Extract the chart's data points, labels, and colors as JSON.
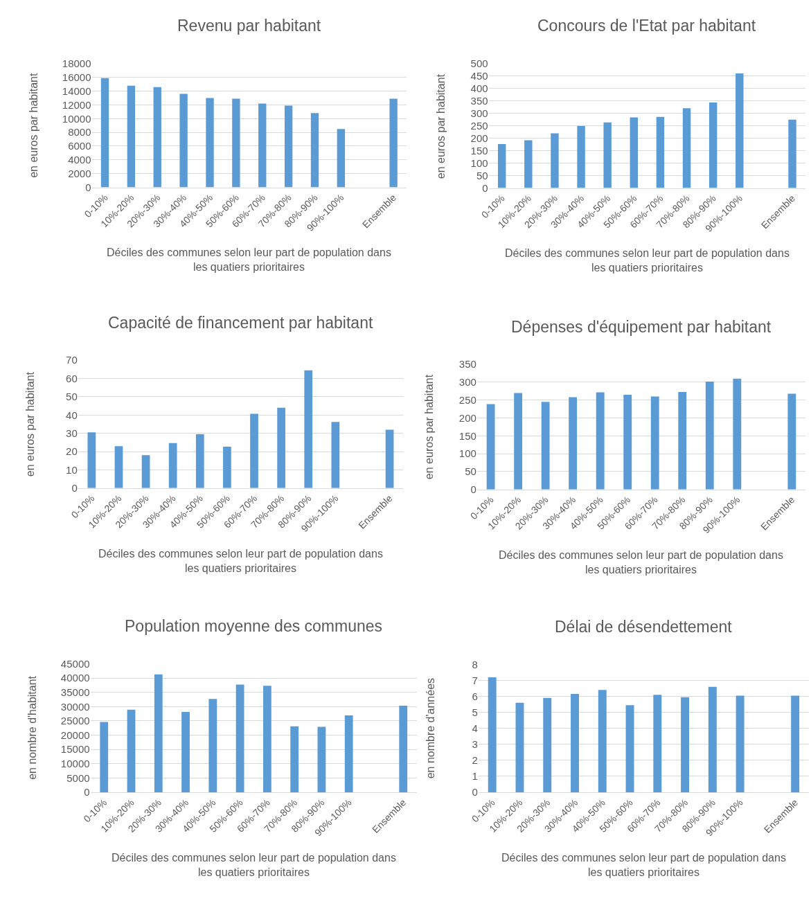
{
  "chart_data": [
    {
      "type": "bar",
      "title": "Revenu par habitant",
      "xlabel": "Déciles des communes selon leur part de population dans les quatiers prioritaires",
      "ylabel": "en euros par habitant",
      "categories": [
        "0-10%",
        "10%-20%",
        "20%-30%",
        "30%-40%",
        "40%-50%",
        "50%-60%",
        "60%-70%",
        "70%-80%",
        "80%-90%",
        "90%-100%",
        null,
        "Ensemble"
      ],
      "color": "#5b9bd5",
      "values": [
        15900,
        14800,
        14600,
        13600,
        13000,
        12900,
        12200,
        11900,
        10800,
        8500,
        null,
        12900
      ],
      "ylim": [
        0,
        18000
      ],
      "yticks": [
        0,
        2000,
        4000,
        6000,
        8000,
        10000,
        12000,
        14000,
        16000,
        18000
      ],
      "grid": "y"
    },
    {
      "type": "bar",
      "title": "Concours de l'Etat par habitant",
      "xlabel": "Déciles des communes selon leur part de population dans les quatiers prioritaires",
      "ylabel": "en euros par habitant",
      "categories": [
        "0-10%",
        "10%-20%",
        "20%-30%",
        "30%-40%",
        "40%-50%",
        "50%-60%",
        "60%-70%",
        "70%-80%",
        "80%-90%",
        "90%-100%",
        null,
        "Ensemble"
      ],
      "color": "#5b9bd5",
      "values": [
        177,
        192,
        220,
        249,
        264,
        284,
        286,
        321,
        344,
        461,
        null,
        275
      ],
      "ylim": [
        0,
        500
      ],
      "yticks": [
        0,
        50,
        100,
        150,
        200,
        250,
        300,
        350,
        400,
        450,
        500
      ],
      "grid": "y"
    },
    {
      "type": "bar",
      "title": "Capacité de financement par habitant",
      "xlabel": "Déciles des communes selon leur part de population dans les quatiers prioritaires",
      "ylabel": "en euros par habitant",
      "categories": [
        "0-10%",
        "10%-20%",
        "20%-30%",
        "30%-40%",
        "40%-50%",
        "50%-60%",
        "60%-70%",
        "70%-80%",
        "80%-90%",
        "90%-100%",
        null,
        "Ensemble"
      ],
      "color": "#5b9bd5",
      "values": [
        30.5,
        23,
        18,
        24.7,
        29.5,
        22.7,
        40.7,
        44,
        64.5,
        36.2,
        null,
        32
      ],
      "ylim": [
        0,
        70
      ],
      "yticks": [
        0,
        10,
        20,
        30,
        40,
        50,
        60,
        70
      ],
      "grid": "y"
    },
    {
      "type": "bar",
      "title": "Dépenses d'équipement par habitant",
      "xlabel": "Déciles des communes selon leur part de population dans les quatiers prioritaires",
      "ylabel": "en euros par habitant",
      "categories": [
        "0-10%",
        "10%-20%",
        "20%-30%",
        "30%-40%",
        "40%-50%",
        "50%-60%",
        "60%-70%",
        "70%-80%",
        "80%-90%",
        "90%-100%",
        null,
        "Ensemble"
      ],
      "color": "#5b9bd5",
      "values": [
        239,
        270,
        245,
        258,
        272,
        265,
        260,
        273,
        302,
        310,
        null,
        268
      ],
      "ylim": [
        0,
        350
      ],
      "yticks": [
        0,
        50,
        100,
        150,
        200,
        250,
        300,
        350
      ],
      "grid": "y"
    },
    {
      "type": "bar",
      "title": "Population moyenne des communes",
      "xlabel": "Déciles des communes selon leur part de population dans les quatiers prioritaires",
      "ylabel": "en nombre d'habitant",
      "categories": [
        "0-10%",
        "10%-20%",
        "20%-30%",
        "30%-40%",
        "40%-50%",
        "50%-60%",
        "60%-70%",
        "70%-80%",
        "80%-90%",
        "90%-100%",
        null,
        "Ensemble"
      ],
      "color": "#5b9bd5",
      "values": [
        24600,
        28900,
        41300,
        28100,
        32700,
        37700,
        37300,
        23100,
        22900,
        26900,
        null,
        30300
      ],
      "ylim": [
        0,
        45000
      ],
      "yticks": [
        0,
        5000,
        10000,
        15000,
        20000,
        25000,
        30000,
        35000,
        40000,
        45000
      ],
      "grid": "y"
    },
    {
      "type": "bar",
      "title": "Délai de désendettement",
      "xlabel": "Déciles des communes selon leur part de population dans les quatiers prioritaires",
      "ylabel": "en nombre d'années",
      "categories": [
        "0-10%",
        "10%-20%",
        "20%-30%",
        "30%-40%",
        "40%-50%",
        "50%-60%",
        "60%-70%",
        "70%-80%",
        "80%-90%",
        "90%-100%",
        null,
        "Ensemble"
      ],
      "color": "#5b9bd5",
      "values": [
        7.2,
        5.6,
        5.9,
        6.15,
        6.4,
        5.45,
        6.1,
        5.95,
        6.6,
        6.05,
        null,
        6.05
      ],
      "ylim": [
        0,
        8
      ],
      "yticks": [
        0,
        1,
        2,
        3,
        4,
        5,
        6,
        7,
        8
      ],
      "grid": "y"
    }
  ]
}
